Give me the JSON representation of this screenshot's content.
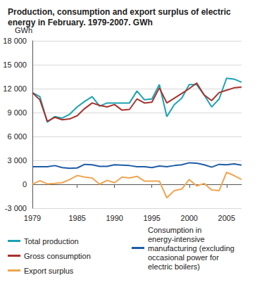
{
  "chart_data": {
    "type": "line",
    "title": "Production, consumption and export surplus of electric energy in February. 1979-2007. GWh",
    "y_label": "GWh",
    "x": [
      1979,
      1980,
      1981,
      1982,
      1983,
      1984,
      1985,
      1986,
      1987,
      1988,
      1989,
      1990,
      1991,
      1992,
      1993,
      1994,
      1995,
      1996,
      1997,
      1998,
      1999,
      2000,
      2001,
      2002,
      2003,
      2004,
      2005,
      2006,
      2007
    ],
    "series": [
      {
        "name": "Total production",
        "color": "#1ba3b3",
        "values": [
          11500,
          11000,
          7800,
          8500,
          8300,
          8800,
          9700,
          10400,
          11000,
          9800,
          10200,
          10200,
          10200,
          10200,
          11700,
          10600,
          10700,
          12500,
          8500,
          10000,
          10800,
          12500,
          12500,
          11200,
          9700,
          10700,
          13300,
          13200,
          12800
        ]
      },
      {
        "name": "Consumption in energy-intensive manufacturing (excluding occasional power for electric boilers)",
        "color": "#1f5ca6",
        "values": [
          2200,
          2200,
          2200,
          2350,
          2100,
          2000,
          2050,
          2500,
          2450,
          2250,
          2250,
          2450,
          2400,
          2350,
          2200,
          2200,
          2100,
          2300,
          2200,
          2350,
          2450,
          2700,
          2650,
          2450,
          2150,
          2500,
          2450,
          2550,
          2400
        ]
      },
      {
        "name": "Gross consumption",
        "color": "#a8322d",
        "values": [
          11500,
          10600,
          7900,
          8400,
          8100,
          8200,
          8600,
          9500,
          10200,
          9900,
          9700,
          10000,
          9300,
          9400,
          10700,
          10200,
          10300,
          12100,
          10200,
          10800,
          11400,
          12000,
          12700,
          11200,
          10500,
          11500,
          11800,
          12100,
          12200
        ]
      },
      {
        "name": "Export surplus",
        "color": "#f0a550",
        "values": [
          0,
          450,
          50,
          100,
          200,
          600,
          1100,
          900,
          800,
          0,
          500,
          200,
          900,
          800,
          1000,
          400,
          400,
          400,
          -1700,
          -800,
          -600,
          600,
          -200,
          100,
          -700,
          -800,
          1500,
          1100,
          600
        ]
      }
    ],
    "xlim": [
      1979,
      2007
    ],
    "xticks": [
      1979,
      1985,
      1990,
      1995,
      2000,
      2005
    ],
    "ylim": [
      -3000,
      18000
    ],
    "yticks": [
      {
        "value": -3000,
        "label": "-3 000"
      },
      0,
      {
        "value": 3000,
        "label": "3 000"
      },
      {
        "value": 6000,
        "label": "6 000"
      },
      {
        "value": 9000,
        "label": "9 000"
      },
      {
        "value": 12000,
        "label": "12 000"
      },
      {
        "value": 15000,
        "label": "15 000"
      },
      {
        "value": 18000,
        "label": "18 000"
      }
    ],
    "grid": true,
    "legend": "bottom"
  }
}
